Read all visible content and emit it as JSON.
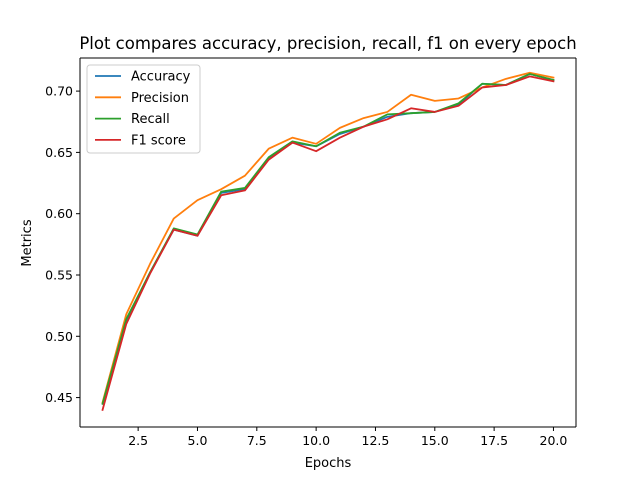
{
  "chart_data": {
    "type": "line",
    "title": "Plot compares accuracy, precision, recall, f1 on every epoch",
    "xlabel": "Epochs",
    "ylabel": "Metrics",
    "xlim": [
      0.05,
      20.95
    ],
    "ylim": [
      0.426,
      0.727
    ],
    "xticks": [
      2.5,
      5.0,
      7.5,
      10.0,
      12.5,
      15.0,
      17.5,
      20.0
    ],
    "xtick_labels": [
      "2.5",
      "5.0",
      "7.5",
      "10.0",
      "12.5",
      "15.0",
      "17.5",
      "20.0"
    ],
    "yticks": [
      0.45,
      0.5,
      0.55,
      0.6,
      0.65,
      0.7
    ],
    "ytick_labels": [
      "0.45",
      "0.50",
      "0.55",
      "0.60",
      "0.65",
      "0.70"
    ],
    "grid": false,
    "legend_position": "top-left",
    "x": [
      1,
      2,
      3,
      4,
      5,
      6,
      7,
      8,
      9,
      10,
      11,
      12,
      13,
      14,
      15,
      16,
      17,
      18,
      19,
      20
    ],
    "series": [
      {
        "name": "Accuracy",
        "color": "#1f77b4",
        "values": [
          0.445,
          0.513,
          0.552,
          0.587,
          0.582,
          0.617,
          0.62,
          0.645,
          0.658,
          0.655,
          0.665,
          0.671,
          0.679,
          0.682,
          0.683,
          0.689,
          0.706,
          0.705,
          0.714,
          0.709
        ]
      },
      {
        "name": "Precision",
        "color": "#ff7f0e",
        "values": [
          0.446,
          0.518,
          0.559,
          0.596,
          0.611,
          0.62,
          0.631,
          0.653,
          0.662,
          0.657,
          0.67,
          0.678,
          0.683,
          0.697,
          0.692,
          0.694,
          0.703,
          0.71,
          0.715,
          0.711
        ]
      },
      {
        "name": "Recall",
        "color": "#2ca02c",
        "values": [
          0.445,
          0.514,
          0.552,
          0.588,
          0.583,
          0.618,
          0.621,
          0.646,
          0.659,
          0.655,
          0.666,
          0.671,
          0.681,
          0.682,
          0.683,
          0.69,
          0.706,
          0.705,
          0.714,
          0.709
        ]
      },
      {
        "name": "F1 score",
        "color": "#d62728",
        "values": [
          0.44,
          0.51,
          0.551,
          0.587,
          0.582,
          0.615,
          0.619,
          0.644,
          0.658,
          0.651,
          0.662,
          0.671,
          0.677,
          0.686,
          0.683,
          0.688,
          0.703,
          0.705,
          0.712,
          0.708
        ]
      }
    ]
  }
}
